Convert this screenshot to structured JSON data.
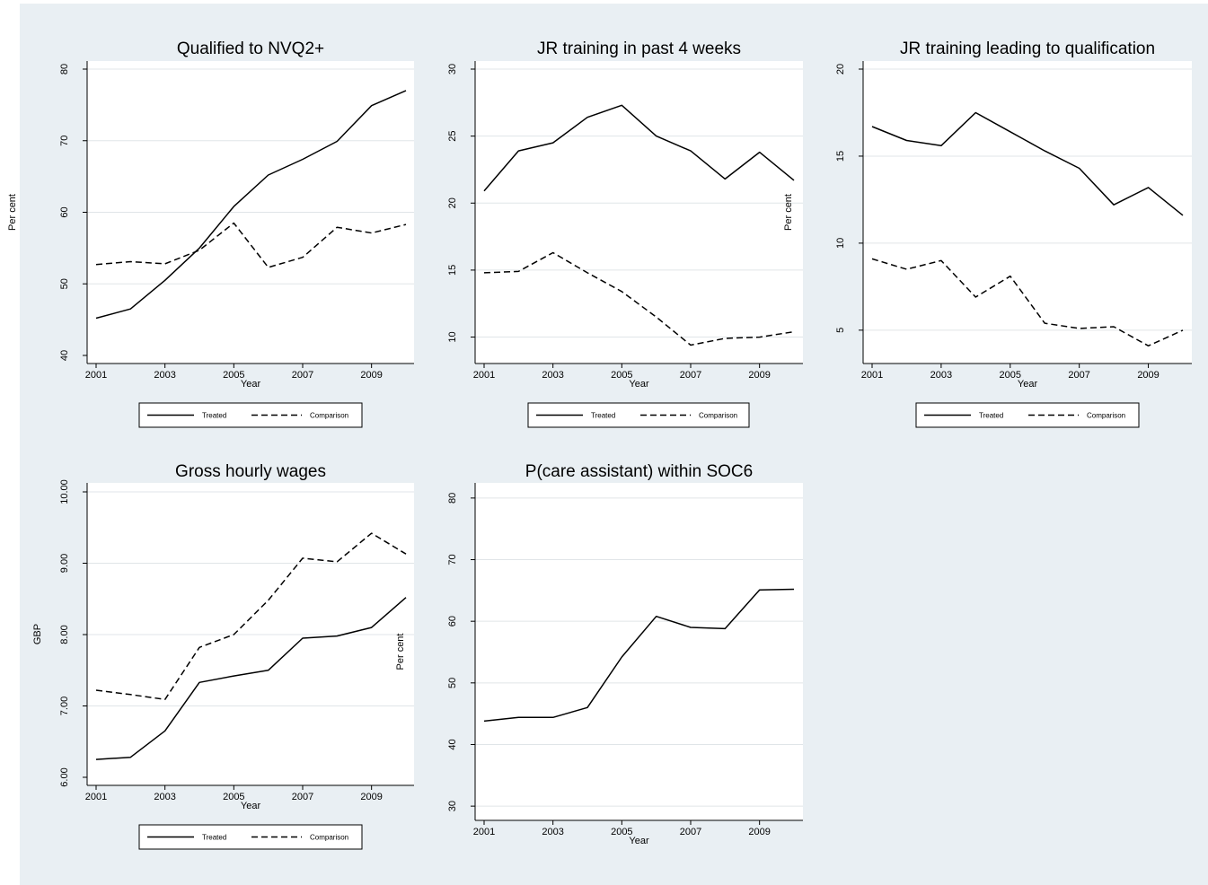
{
  "legend": {
    "treated": "Treated",
    "comparison": "Comparison"
  },
  "colors": {
    "background": "#e9eff3",
    "plot_area": "#ffffff",
    "gridline": "#e0e5e8",
    "line": "#000000"
  },
  "chart_data": [
    {
      "type": "line",
      "title": "Qualified to NVQ2+",
      "xlabel": "Year",
      "ylabel": "Per cent",
      "x": [
        2001,
        2002,
        2003,
        2004,
        2005,
        2006,
        2007,
        2008,
        2009,
        2010
      ],
      "x_ticks": [
        "2001",
        "2003",
        "2005",
        "2007",
        "2009"
      ],
      "y_ticks": [
        "40",
        "50",
        "60",
        "70",
        "80"
      ],
      "ylim": [
        40,
        80
      ],
      "grid": true,
      "legend": true,
      "series": [
        {
          "name": "Treated",
          "style": "solid",
          "values": [
            45.2,
            46.5,
            50.5,
            55.0,
            60.8,
            65.2,
            67.4,
            69.9,
            74.9,
            77.0
          ]
        },
        {
          "name": "Comparison",
          "style": "dashed",
          "values": [
            52.7,
            53.1,
            52.8,
            54.7,
            58.5,
            52.3,
            53.7,
            57.9,
            57.1,
            58.3
          ]
        }
      ]
    },
    {
      "type": "line",
      "title": "JR training in past 4 weeks",
      "xlabel": "Year",
      "ylabel": "Per cent",
      "x": [
        2001,
        2002,
        2003,
        2004,
        2005,
        2006,
        2007,
        2008,
        2009,
        2010
      ],
      "x_ticks": [
        "2001",
        "2003",
        "2005",
        "2007",
        "2009"
      ],
      "y_ticks": [
        "10",
        "15",
        "20",
        "25",
        "30"
      ],
      "ylim": [
        9.3,
        30
      ],
      "grid": true,
      "legend": true,
      "series": [
        {
          "name": "Treated",
          "style": "solid",
          "values": [
            20.9,
            23.9,
            24.5,
            26.4,
            27.3,
            25.0,
            23.9,
            21.8,
            23.8,
            21.7
          ]
        },
        {
          "name": "Comparison",
          "style": "dashed",
          "values": [
            14.8,
            14.9,
            16.3,
            14.8,
            13.4,
            11.5,
            9.4,
            9.9,
            10.0,
            10.4
          ]
        }
      ]
    },
    {
      "type": "line",
      "title": "JR training leading to qualification",
      "xlabel": "Year",
      "ylabel": "",
      "x": [
        2001,
        2002,
        2003,
        2004,
        2005,
        2006,
        2007,
        2008,
        2009,
        2010
      ],
      "x_ticks": [
        "2001",
        "2003",
        "2005",
        "2007",
        "2009"
      ],
      "y_ticks": [
        "5",
        "10",
        "15",
        "20"
      ],
      "ylim": [
        3.6,
        20
      ],
      "grid": true,
      "legend": true,
      "series": [
        {
          "name": "Treated",
          "style": "solid",
          "values": [
            16.7,
            15.9,
            15.6,
            17.5,
            16.4,
            15.3,
            14.3,
            12.2,
            13.2,
            11.6
          ]
        },
        {
          "name": "Comparison",
          "style": "dashed",
          "values": [
            9.1,
            8.5,
            9.0,
            6.9,
            8.1,
            5.4,
            5.1,
            5.2,
            4.1,
            5.0
          ]
        }
      ]
    },
    {
      "type": "line",
      "title": "Gross hourly wages",
      "xlabel": "Year",
      "ylabel": "GBP",
      "x": [
        2001,
        2002,
        2003,
        2004,
        2005,
        2006,
        2007,
        2008,
        2009,
        2010
      ],
      "x_ticks": [
        "2001",
        "2003",
        "2005",
        "2007",
        "2009"
      ],
      "y_ticks": [
        "6.00",
        "7.00",
        "8.00",
        "9.00",
        "10.00"
      ],
      "ylim": [
        6,
        10
      ],
      "grid": true,
      "legend": true,
      "series": [
        {
          "name": "Treated",
          "style": "solid",
          "values": [
            6.25,
            6.28,
            6.65,
            7.33,
            7.42,
            7.5,
            7.95,
            7.98,
            8.1,
            8.52
          ]
        },
        {
          "name": "Comparison",
          "style": "dashed",
          "values": [
            7.22,
            7.16,
            7.09,
            7.82,
            8.0,
            8.48,
            9.07,
            9.02,
            9.42,
            9.13
          ]
        }
      ]
    },
    {
      "type": "line",
      "title": "P(care assistant) within SOC6",
      "xlabel": "Year",
      "ylabel": "Per cent",
      "x": [
        2001,
        2002,
        2003,
        2004,
        2005,
        2006,
        2007,
        2008,
        2009,
        2010
      ],
      "x_ticks": [
        "2001",
        "2003",
        "2005",
        "2007",
        "2009"
      ],
      "y_ticks": [
        "30",
        "40",
        "50",
        "60",
        "70",
        "80"
      ],
      "ylim": [
        29,
        81
      ],
      "grid": true,
      "legend": false,
      "series": [
        {
          "name": "",
          "style": "solid",
          "values": [
            43.8,
            44.4,
            44.4,
            46.0,
            54.2,
            60.8,
            59.0,
            58.8,
            65.1,
            65.2
          ]
        }
      ]
    }
  ]
}
